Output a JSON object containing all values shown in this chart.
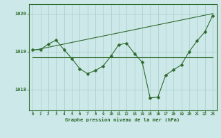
{
  "line1_x": [
    0,
    1,
    2,
    3,
    4,
    5,
    6,
    7,
    8,
    9,
    10,
    11,
    12,
    13,
    14,
    15,
    16,
    17,
    18,
    19,
    20,
    21,
    22,
    23
  ],
  "line1_y": [
    1019.05,
    1019.05,
    1019.2,
    1019.3,
    1019.05,
    1018.82,
    1018.55,
    1018.42,
    1018.5,
    1018.62,
    1018.88,
    1019.18,
    1019.22,
    1018.95,
    1018.72,
    1017.78,
    1017.8,
    1018.38,
    1018.52,
    1018.65,
    1019.0,
    1019.28,
    1019.52,
    1019.95
  ],
  "line2_x": [
    0,
    23
  ],
  "line2_y": [
    1019.03,
    1020.0
  ],
  "line3_x": [
    0,
    10,
    23
  ],
  "line3_y": [
    1018.85,
    1018.85,
    1018.85
  ],
  "line_color": "#2d6a2d",
  "marker": "D",
  "marker_size": 2.5,
  "bg_color": "#cce8e8",
  "grid_color": "#aacccc",
  "ylabel_ticks": [
    1018,
    1019,
    1020
  ],
  "xticks": [
    0,
    1,
    2,
    3,
    4,
    5,
    6,
    7,
    8,
    9,
    10,
    11,
    12,
    13,
    14,
    15,
    16,
    17,
    18,
    19,
    20,
    21,
    22,
    23
  ],
  "xlabel": "Graphe pression niveau de la mer (hPa)",
  "ylim": [
    1017.45,
    1020.25
  ],
  "xlim": [
    -0.5,
    23.5
  ]
}
